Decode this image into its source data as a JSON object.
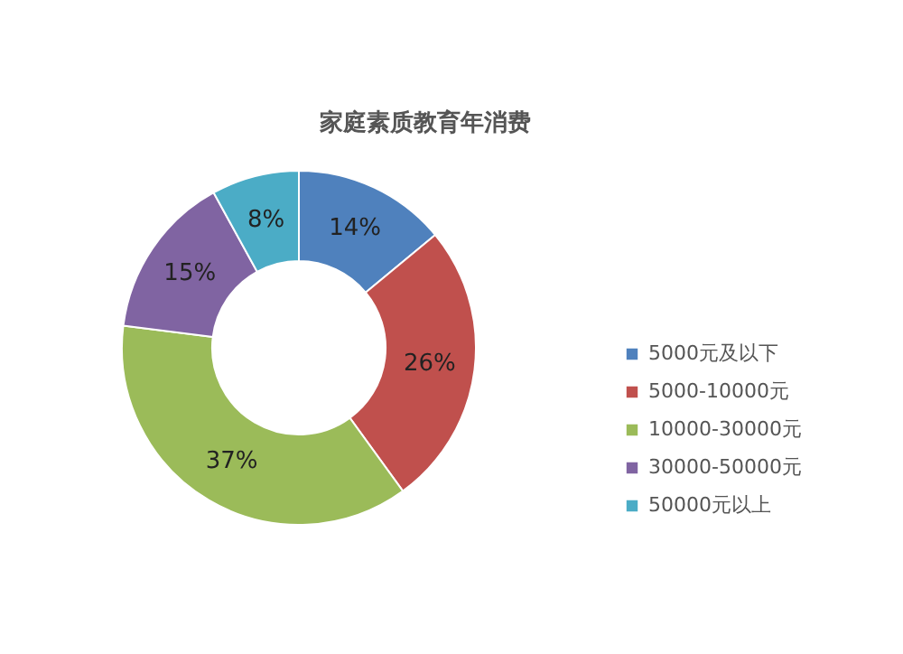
{
  "chart_data": {
    "type": "donut",
    "title": "家庭素质教育年消费",
    "categories": [
      "5000元及以下",
      "5000-10000元",
      "10000-30000元",
      "30000-50000元",
      "50000元以上"
    ],
    "values": [
      14,
      26,
      37,
      15,
      8
    ],
    "colors": [
      "#4f81bd",
      "#c0504d",
      "#9bbb59",
      "#8064a2",
      "#4bacc6"
    ],
    "value_labels": [
      "14%",
      "26%",
      "37%",
      "15%",
      "8%"
    ],
    "legend": "right"
  }
}
